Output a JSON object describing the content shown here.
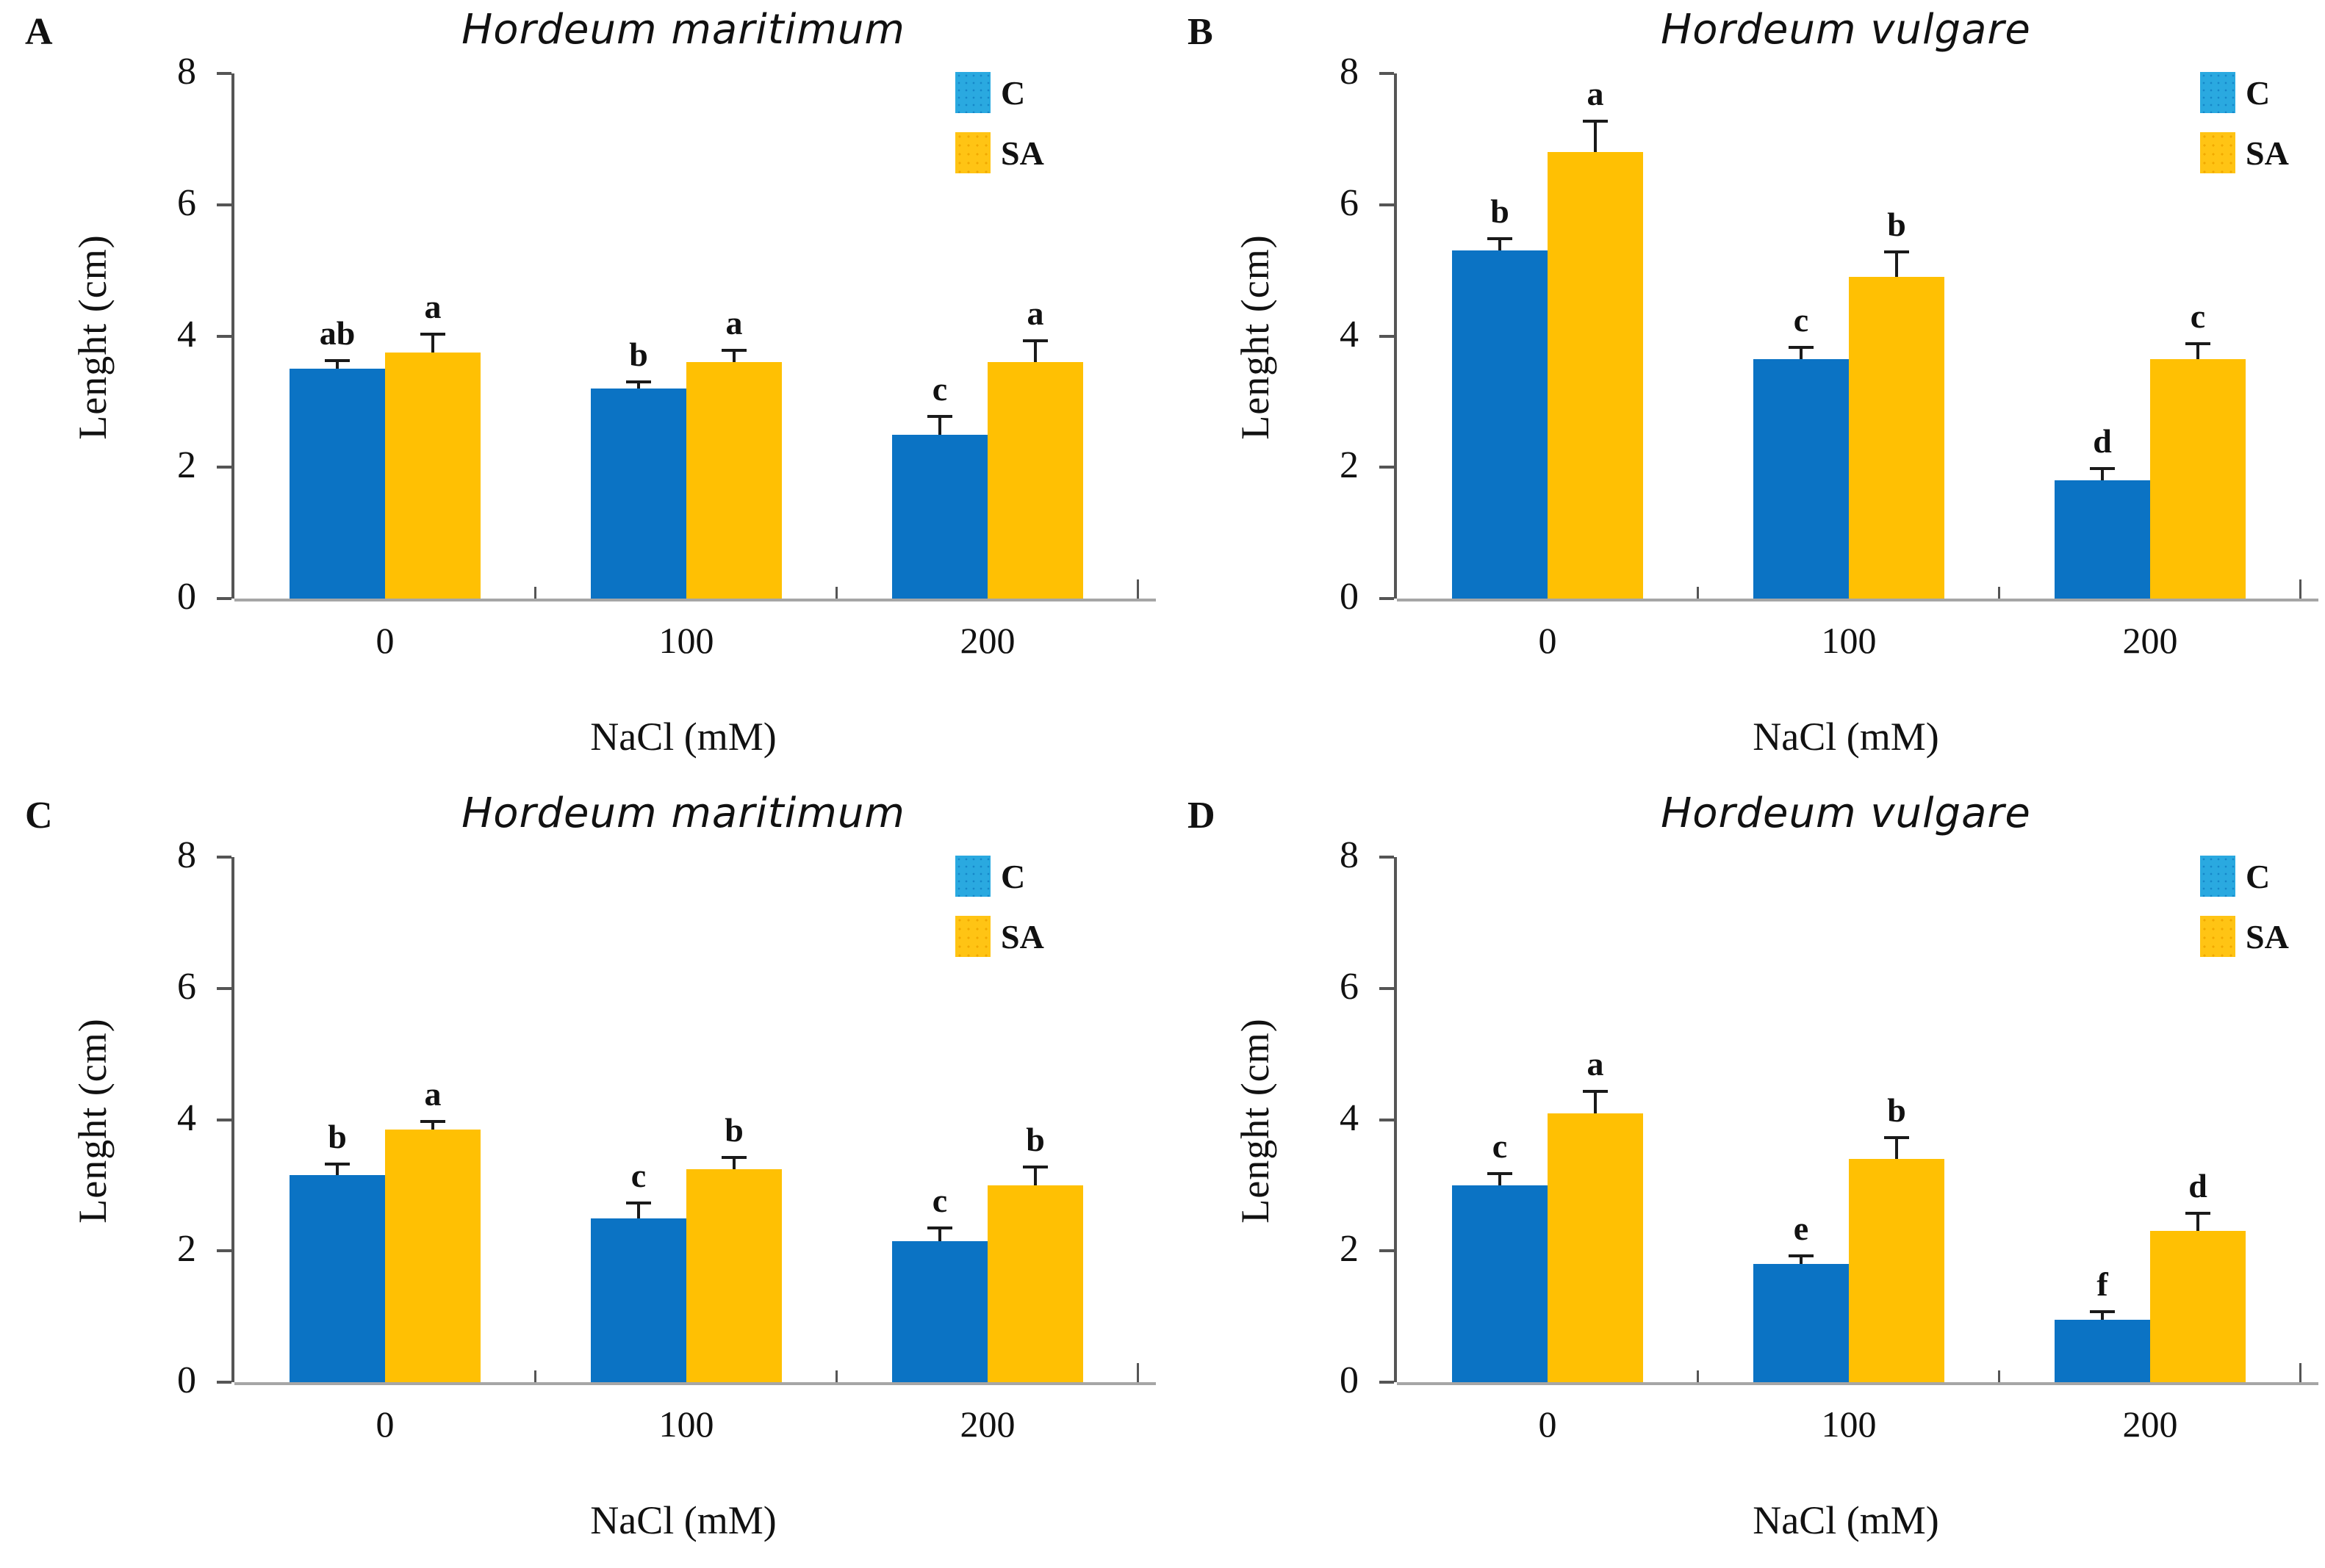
{
  "figure": {
    "background": "#ffffff",
    "ylabel": "Lenght (cm)",
    "xlabel": "NaCl (mM)",
    "legend": [
      {
        "name": "C",
        "swatch_color": "#2AA9E0"
      },
      {
        "name": "SA",
        "swatch_color": "#FFC414"
      }
    ],
    "colors": {
      "c_bar": "#0B73C4",
      "sa_bar": "#FFC003",
      "error_bar": "#1A1A1A",
      "y_axis": "#555555",
      "x_axis": "#A6A6A6",
      "text": "#111111"
    }
  },
  "chart_data": [
    {
      "panel_label": "A",
      "type": "bar",
      "title": "Hordeum maritimum",
      "xlabel": "NaCl (mM)",
      "ylabel": "Lenght (cm)",
      "ylim": [
        0,
        8
      ],
      "yticks": [
        0,
        2,
        4,
        6,
        8
      ],
      "categories": [
        "0",
        "100",
        "200"
      ],
      "series": [
        {
          "name": "C",
          "color": "#0B73C4",
          "values": [
            3.5,
            3.2,
            2.5
          ],
          "errors": [
            0.15,
            0.12,
            0.3
          ],
          "letters": [
            "ab",
            "b",
            "c"
          ]
        },
        {
          "name": "SA",
          "color": "#FFC003",
          "values": [
            3.75,
            3.6,
            3.6
          ],
          "errors": [
            0.3,
            0.2,
            0.35
          ],
          "letters": [
            "a",
            "a",
            "a"
          ]
        }
      ]
    },
    {
      "panel_label": "B",
      "type": "bar",
      "title": "Hordeum vulgare",
      "xlabel": "NaCl (mM)",
      "ylabel": "Lenght (cm)",
      "ylim": [
        0,
        8
      ],
      "yticks": [
        0,
        2,
        4,
        6,
        8
      ],
      "categories": [
        "0",
        "100",
        "200"
      ],
      "series": [
        {
          "name": "C",
          "color": "#0B73C4",
          "values": [
            5.3,
            3.65,
            1.8
          ],
          "errors": [
            0.2,
            0.2,
            0.2
          ],
          "letters": [
            "b",
            "c",
            "d"
          ]
        },
        {
          "name": "SA",
          "color": "#FFC003",
          "values": [
            6.8,
            4.9,
            3.65
          ],
          "errors": [
            0.5,
            0.4,
            0.25
          ],
          "letters": [
            "a",
            "b",
            "c"
          ]
        }
      ]
    },
    {
      "panel_label": "C",
      "type": "bar",
      "title": "Hordeum maritimum",
      "xlabel": "NaCl (mM)",
      "ylabel": "Lenght (cm)",
      "ylim": [
        0,
        8
      ],
      "yticks": [
        0,
        2,
        4,
        6,
        8
      ],
      "categories": [
        "0",
        "100",
        "200"
      ],
      "series": [
        {
          "name": "C",
          "color": "#0B73C4",
          "values": [
            3.15,
            2.5,
            2.15
          ],
          "errors": [
            0.2,
            0.25,
            0.22
          ],
          "letters": [
            "b",
            "c",
            "c"
          ]
        },
        {
          "name": "SA",
          "color": "#FFC003",
          "values": [
            3.85,
            3.25,
            3.0
          ],
          "errors": [
            0.15,
            0.2,
            0.3
          ],
          "letters": [
            "a",
            "b",
            "b"
          ]
        }
      ]
    },
    {
      "panel_label": "D",
      "type": "bar",
      "title": "Hordeum vulgare",
      "xlabel": "NaCl (mM)",
      "ylabel": "Lenght (cm)",
      "ylim": [
        0,
        8
      ],
      "yticks": [
        0,
        2,
        4,
        6,
        8
      ],
      "categories": [
        "0",
        "100",
        "200"
      ],
      "series": [
        {
          "name": "C",
          "color": "#0B73C4",
          "values": [
            3.0,
            1.8,
            0.95
          ],
          "errors": [
            0.2,
            0.15,
            0.15
          ],
          "letters": [
            "c",
            "e",
            "f"
          ]
        },
        {
          "name": "SA",
          "color": "#FFC003",
          "values": [
            4.1,
            3.4,
            2.3
          ],
          "errors": [
            0.35,
            0.35,
            0.3
          ],
          "letters": [
            "a",
            "b",
            "d"
          ]
        }
      ]
    }
  ]
}
